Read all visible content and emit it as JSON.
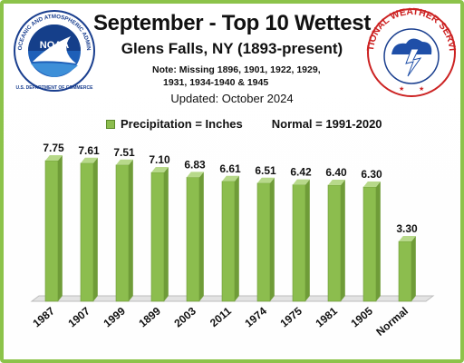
{
  "chart_data": {
    "type": "bar",
    "title": "September - Top 10 Wettest",
    "subtitle": "Glens Falls, NY (1893-present)",
    "note_lines": [
      "Note: Missing 1896, 1901, 1922, 1929,",
      "1931, 1934-1940 & 1945"
    ],
    "updated": "Updated: October 2024",
    "legend": [
      "Precipitation = Inches",
      "Normal = 1991-2020"
    ],
    "legend_position": "top",
    "grid": false,
    "categories": [
      "1987",
      "1907",
      "1999",
      "1899",
      "2003",
      "2011",
      "1974",
      "1975",
      "1981",
      "1905",
      "Normal"
    ],
    "values": [
      7.75,
      7.61,
      7.51,
      7.1,
      6.83,
      6.61,
      6.51,
      6.42,
      6.4,
      6.3,
      3.3
    ],
    "value_labels": [
      "7.75",
      "7.61",
      "7.51",
      "7.10",
      "6.83",
      "6.61",
      "6.51",
      "6.42",
      "6.40",
      "6.30",
      "3.30"
    ],
    "ylim": [
      0,
      9
    ],
    "bar_color": "#8cbd4e",
    "frame_color": "#8cc34a"
  },
  "logos": {
    "noaa_text": "NOAA",
    "noaa_ring_text": "NATIONAL OCEANIC AND ATMOSPHERIC ADMINISTRATION",
    "noaa_bottom_text": "U.S. DEPARTMENT OF COMMERCE",
    "nws_ring_text": "NATIONAL WEATHER SERVICE"
  }
}
